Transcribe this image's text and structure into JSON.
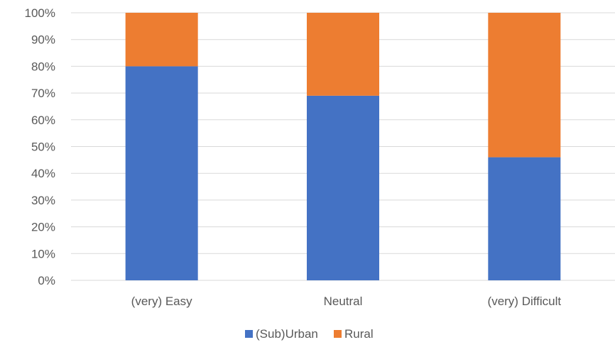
{
  "chart_data": {
    "type": "bar",
    "stacked": "percent",
    "categories": [
      "(very) Easy",
      "Neutral",
      "(very) Difficult"
    ],
    "series": [
      {
        "name": "(Sub)Urban",
        "color": "#4472C4",
        "values": [
          80,
          69,
          46
        ]
      },
      {
        "name": "Rural",
        "color": "#ED7D31",
        "values": [
          20,
          31,
          54
        ]
      }
    ],
    "y_ticks": [
      "0%",
      "10%",
      "20%",
      "30%",
      "40%",
      "50%",
      "60%",
      "70%",
      "80%",
      "90%",
      "100%"
    ],
    "ylim": [
      0,
      100
    ],
    "grid": true,
    "legend_position": "bottom",
    "title": "",
    "xlabel": "",
    "ylabel": ""
  }
}
